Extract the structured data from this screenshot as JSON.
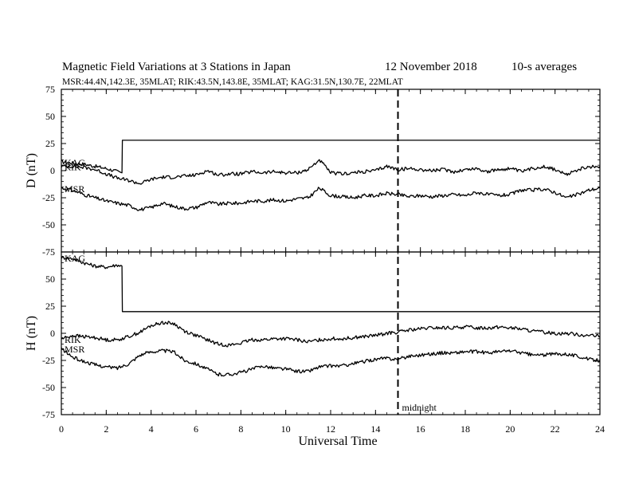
{
  "chart_data": {
    "type": "line",
    "title": "Magnetic Field Variations at 3 Stations in Japan",
    "date": "12 November 2018",
    "averaging": "10-s averages",
    "subtitle": "MSR:44.4N,142.3E, 35MLAT;  RIK:43.5N,143.8E, 35MLAT;  KAG:31.5N,130.7E, 22MLAT",
    "xlabel": "Universal Time",
    "xlim": [
      0,
      24
    ],
    "x_ticks": [
      "0",
      "2",
      "4",
      "6",
      "8",
      "10",
      "12",
      "14",
      "16",
      "18",
      "20",
      "22",
      "24"
    ],
    "grid": false,
    "marker": {
      "x": 15,
      "label": "midnight"
    },
    "panels": [
      {
        "ylabel": "D (nT)",
        "ylim": [
          -75,
          75
        ],
        "y_ticks": [
          "75",
          "50",
          "25",
          "0",
          "-25",
          "-50",
          "-75"
        ],
        "series": [
          {
            "name": "KAG",
            "x": [
              0,
              1,
              2,
              2.7,
              2.72,
              24
            ],
            "y": [
              8,
              6,
              2,
              -2,
              28,
              28
            ]
          },
          {
            "name": "RIK",
            "x": [
              0,
              0.5,
              1,
              1.5,
              2,
              2.5,
              3,
              3.5,
              4,
              4.5,
              5,
              5.5,
              6,
              6.5,
              7,
              7.5,
              8,
              8.5,
              9,
              9.5,
              10,
              10.5,
              11,
              11.5,
              12,
              12.5,
              13,
              13.5,
              14,
              14.5,
              15,
              15.5,
              16,
              16.5,
              17,
              17.5,
              18,
              18.5,
              19,
              19.5,
              20,
              20.5,
              21,
              21.5,
              22,
              22.5,
              23,
              23.5,
              24
            ],
            "y": [
              4,
              4,
              3,
              1,
              -3,
              -7,
              -9,
              -12,
              -8,
              -6,
              -6,
              -5,
              -4,
              0,
              -4,
              -3,
              -3,
              -1,
              -2,
              -1,
              -2,
              -2,
              1,
              10,
              -2,
              -3,
              -2,
              -1,
              0,
              4,
              1,
              2,
              1,
              0,
              1,
              -1,
              1,
              2,
              -1,
              1,
              2,
              -1,
              2,
              4,
              1,
              -4,
              1,
              3,
              4
            ]
          },
          {
            "name": "MSR",
            "x": [
              0,
              0.5,
              1,
              1.5,
              2,
              2.5,
              3,
              3.5,
              4,
              4.5,
              5,
              5.5,
              6,
              6.5,
              7,
              7.5,
              8,
              8.5,
              9,
              9.5,
              10,
              10.5,
              11,
              11.5,
              12,
              12.5,
              13,
              13.5,
              14,
              14.5,
              15,
              15.5,
              16,
              16.5,
              17,
              17.5,
              18,
              18.5,
              19,
              19.5,
              20,
              20.5,
              21,
              21.5,
              22,
              22.5,
              23,
              23.5,
              24
            ],
            "y": [
              -16,
              -18,
              -22,
              -25,
              -28,
              -30,
              -32,
              -36,
              -34,
              -30,
              -33,
              -35,
              -34,
              -29,
              -31,
              -30,
              -30,
              -28,
              -28,
              -27,
              -28,
              -26,
              -25,
              -16,
              -23,
              -24,
              -25,
              -23,
              -23,
              -21,
              -22,
              -24,
              -23,
              -24,
              -23,
              -22,
              -23,
              -20,
              -22,
              -23,
              -22,
              -18,
              -18,
              -17,
              -20,
              -25,
              -22,
              -18,
              -16
            ]
          }
        ]
      },
      {
        "ylabel": "H (nT)",
        "ylim": [
          -75,
          75
        ],
        "y_ticks": [
          "75",
          "50",
          "25",
          "0",
          "-25",
          "-50",
          "-75"
        ],
        "series": [
          {
            "name": "KAG",
            "x": [
              0,
              0.5,
              1,
              1.5,
              2,
              2.5,
              2.7,
              2.72,
              24
            ],
            "y": [
              70,
              69,
              65,
              62,
              61,
              63,
              62,
              20,
              20
            ]
          },
          {
            "name": "RIK",
            "x": [
              0,
              0.5,
              1,
              1.5,
              2,
              2.5,
              3,
              3.5,
              4,
              4.5,
              5,
              5.5,
              6,
              6.5,
              7,
              7.5,
              8,
              8.5,
              9,
              9.5,
              10,
              10.5,
              11,
              11.5,
              12,
              12.5,
              13,
              13.5,
              14,
              14.5,
              15,
              15.5,
              16,
              16.5,
              17,
              17.5,
              18,
              18.5,
              19,
              19.5,
              20,
              20.5,
              21,
              21.5,
              22,
              22.5,
              23,
              23.5,
              24
            ],
            "y": [
              -5,
              -2,
              -3,
              -4,
              -6,
              -6,
              -3,
              1,
              7,
              10,
              9,
              2,
              -2,
              -6,
              -10,
              -11,
              -9,
              -6,
              -6,
              -5,
              -5,
              -6,
              -8,
              -6,
              -5,
              -5,
              -4,
              -3,
              -2,
              0,
              1,
              3,
              4,
              5,
              5,
              5,
              6,
              5,
              5,
              6,
              5,
              4,
              2,
              1,
              0,
              0,
              -1,
              -2,
              -3
            ]
          },
          {
            "name": "MSR",
            "x": [
              0,
              0.5,
              1,
              1.5,
              2,
              2.5,
              3,
              3.5,
              4,
              4.5,
              5,
              5.5,
              6,
              6.5,
              7,
              7.5,
              8,
              8.5,
              9,
              9.5,
              10,
              10.5,
              11,
              11.5,
              12,
              12.5,
              13,
              13.5,
              14,
              14.5,
              15,
              15.5,
              16,
              16.5,
              17,
              17.5,
              18,
              18.5,
              19,
              19.5,
              20,
              20.5,
              21,
              21.5,
              22,
              22.5,
              23,
              23.5,
              24
            ],
            "y": [
              -14,
              -22,
              -26,
              -29,
              -31,
              -32,
              -28,
              -20,
              -17,
              -16,
              -17,
              -25,
              -28,
              -33,
              -38,
              -38,
              -36,
              -33,
              -30,
              -32,
              -33,
              -35,
              -35,
              -31,
              -30,
              -30,
              -28,
              -26,
              -24,
              -23,
              -24,
              -21,
              -20,
              -19,
              -18,
              -18,
              -17,
              -17,
              -18,
              -17,
              -16,
              -18,
              -20,
              -20,
              -19,
              -19,
              -21,
              -24,
              -25
            ]
          }
        ]
      }
    ]
  }
}
